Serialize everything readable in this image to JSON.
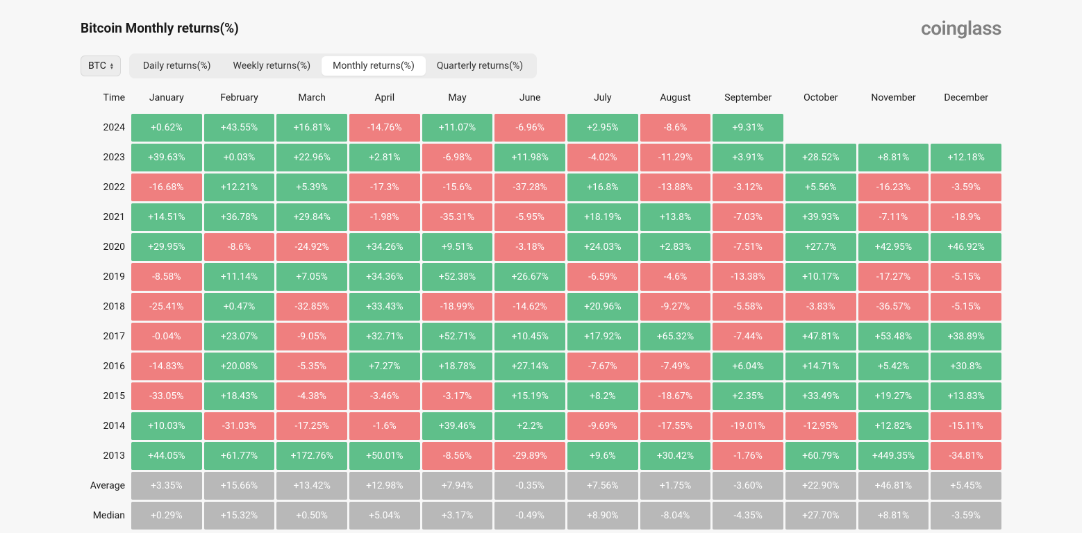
{
  "title": "Bitcoin Monthly returns(%)",
  "logo": "coinglass",
  "coin_selector": {
    "value": "BTC"
  },
  "tabs": {
    "items": [
      {
        "label": "Daily returns(%)",
        "active": false
      },
      {
        "label": "Weekly returns(%)",
        "active": false
      },
      {
        "label": "Monthly returns(%)",
        "active": true
      },
      {
        "label": "Quarterly returns(%)",
        "active": false
      }
    ]
  },
  "columns": [
    "Time",
    "January",
    "February",
    "March",
    "April",
    "May",
    "June",
    "July",
    "August",
    "September",
    "October",
    "November",
    "December"
  ],
  "colors": {
    "positive": "#5fbf8a",
    "negative": "#ef7f7f",
    "summary": "#b8b8b8",
    "background": "#f7f7f7",
    "cell_text": "#ffffff"
  },
  "rows": [
    {
      "year": "2024",
      "type": "data",
      "cells": [
        "+0.62%",
        "+43.55%",
        "+16.81%",
        "-14.76%",
        "+11.07%",
        "-6.96%",
        "+2.95%",
        "-8.6%",
        "+9.31%",
        null,
        null,
        null
      ]
    },
    {
      "year": "2023",
      "type": "data",
      "cells": [
        "+39.63%",
        "+0.03%",
        "+22.96%",
        "+2.81%",
        "-6.98%",
        "+11.98%",
        "-4.02%",
        "-11.29%",
        "+3.91%",
        "+28.52%",
        "+8.81%",
        "+12.18%"
      ]
    },
    {
      "year": "2022",
      "type": "data",
      "cells": [
        "-16.68%",
        "+12.21%",
        "+5.39%",
        "-17.3%",
        "-15.6%",
        "-37.28%",
        "+16.8%",
        "-13.88%",
        "-3.12%",
        "+5.56%",
        "-16.23%",
        "-3.59%"
      ]
    },
    {
      "year": "2021",
      "type": "data",
      "cells": [
        "+14.51%",
        "+36.78%",
        "+29.84%",
        "-1.98%",
        "-35.31%",
        "-5.95%",
        "+18.19%",
        "+13.8%",
        "-7.03%",
        "+39.93%",
        "-7.11%",
        "-18.9%"
      ]
    },
    {
      "year": "2020",
      "type": "data",
      "cells": [
        "+29.95%",
        "-8.6%",
        "-24.92%",
        "+34.26%",
        "+9.51%",
        "-3.18%",
        "+24.03%",
        "+2.83%",
        "-7.51%",
        "+27.7%",
        "+42.95%",
        "+46.92%"
      ]
    },
    {
      "year": "2019",
      "type": "data",
      "cells": [
        "-8.58%",
        "+11.14%",
        "+7.05%",
        "+34.36%",
        "+52.38%",
        "+26.67%",
        "-6.59%",
        "-4.6%",
        "-13.38%",
        "+10.17%",
        "-17.27%",
        "-5.15%"
      ]
    },
    {
      "year": "2018",
      "type": "data",
      "cells": [
        "-25.41%",
        "+0.47%",
        "-32.85%",
        "+33.43%",
        "-18.99%",
        "-14.62%",
        "+20.96%",
        "-9.27%",
        "-5.58%",
        "-3.83%",
        "-36.57%",
        "-5.15%"
      ]
    },
    {
      "year": "2017",
      "type": "data",
      "cells": [
        "-0.04%",
        "+23.07%",
        "-9.05%",
        "+32.71%",
        "+52.71%",
        "+10.45%",
        "+17.92%",
        "+65.32%",
        "-7.44%",
        "+47.81%",
        "+53.48%",
        "+38.89%"
      ]
    },
    {
      "year": "2016",
      "type": "data",
      "cells": [
        "-14.83%",
        "+20.08%",
        "-5.35%",
        "+7.27%",
        "+18.78%",
        "+27.14%",
        "-7.67%",
        "-7.49%",
        "+6.04%",
        "+14.71%",
        "+5.42%",
        "+30.8%"
      ]
    },
    {
      "year": "2015",
      "type": "data",
      "cells": [
        "-33.05%",
        "+18.43%",
        "-4.38%",
        "-3.46%",
        "-3.17%",
        "+15.19%",
        "+8.2%",
        "-18.67%",
        "+2.35%",
        "+33.49%",
        "+19.27%",
        "+13.83%"
      ]
    },
    {
      "year": "2014",
      "type": "data",
      "cells": [
        "+10.03%",
        "-31.03%",
        "-17.25%",
        "-1.6%",
        "+39.46%",
        "+2.2%",
        "-9.69%",
        "-17.55%",
        "-19.01%",
        "-12.95%",
        "+12.82%",
        "-15.11%"
      ]
    },
    {
      "year": "2013",
      "type": "data",
      "cells": [
        "+44.05%",
        "+61.77%",
        "+172.76%",
        "+50.01%",
        "-8.56%",
        "-29.89%",
        "+9.6%",
        "+30.42%",
        "-1.76%",
        "+60.79%",
        "+449.35%",
        "-34.81%"
      ]
    },
    {
      "year": "Average",
      "type": "summary",
      "cells": [
        "+3.35%",
        "+15.66%",
        "+13.42%",
        "+12.98%",
        "+7.94%",
        "-0.35%",
        "+7.56%",
        "+1.75%",
        "-3.60%",
        "+22.90%",
        "+46.81%",
        "+5.45%"
      ]
    },
    {
      "year": "Median",
      "type": "summary",
      "cells": [
        "+0.29%",
        "+15.32%",
        "+0.50%",
        "+5.04%",
        "+3.17%",
        "-0.49%",
        "+8.90%",
        "-8.04%",
        "-4.35%",
        "+27.70%",
        "+8.81%",
        "-3.59%"
      ]
    }
  ]
}
